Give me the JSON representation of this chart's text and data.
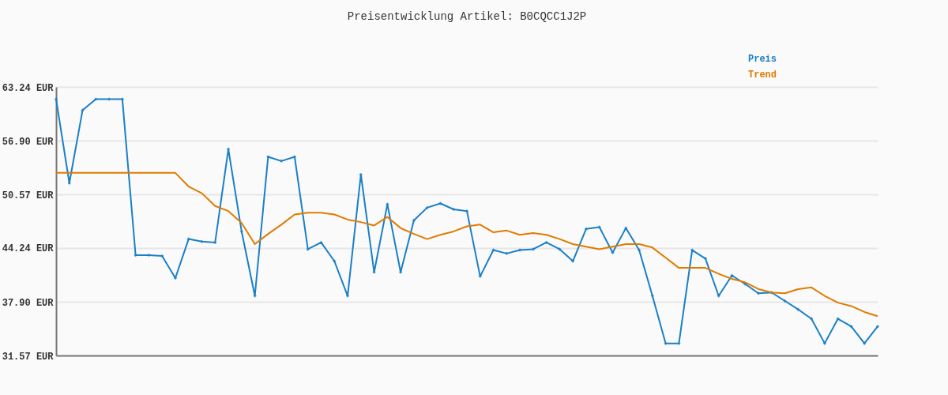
{
  "chart_data": {
    "type": "line",
    "title": "Preisentwicklung Artikel: B0CQCC1J2P",
    "categories": [
      null,
      null,
      null,
      null,
      null,
      null,
      null,
      null,
      null,
      null,
      null,
      null,
      null,
      null,
      null,
      null,
      null,
      null,
      null,
      null,
      null,
      null,
      null,
      null,
      null,
      null,
      null,
      null,
      null,
      null,
      null,
      null,
      null,
      null,
      null,
      null,
      null,
      null,
      null,
      null,
      null,
      null,
      null,
      null,
      null,
      null,
      null,
      null,
      null,
      null,
      null,
      null,
      null,
      null,
      null,
      null,
      null,
      null,
      null,
      null,
      null,
      null,
      null
    ],
    "series": [
      {
        "name": "Preis",
        "color": "#1a7fc8",
        "marker": "diamond",
        "values": [
          61.8,
          51.9,
          60.5,
          61.8,
          61.8,
          61.8,
          43.4,
          43.4,
          43.3,
          40.7,
          45.3,
          45.0,
          44.9,
          55.9,
          46.2,
          38.6,
          55.0,
          54.5,
          55.0,
          44.1,
          44.9,
          42.7,
          38.6,
          52.9,
          41.4,
          49.4,
          41.4,
          47.5,
          49.0,
          49.5,
          48.8,
          48.6,
          40.9,
          44.0,
          43.6,
          44.0,
          44.1,
          44.9,
          44.1,
          42.7,
          46.5,
          46.7,
          43.7,
          46.6,
          44.0,
          38.6,
          33.0,
          33.0,
          44.0,
          43.0,
          38.6,
          41.0,
          40.0,
          38.9,
          39.0,
          38.0,
          37.0,
          35.9,
          33.0,
          35.9,
          35.0,
          33.0,
          35.0
        ]
      },
      {
        "name": "Trend",
        "color": "#e07b00",
        "marker": "none",
        "values": [
          53.1,
          53.1,
          53.1,
          53.1,
          53.1,
          53.1,
          53.1,
          53.1,
          53.1,
          53.1,
          51.5,
          50.7,
          49.2,
          48.6,
          47.2,
          44.7,
          45.9,
          47.0,
          48.2,
          48.4,
          48.4,
          48.2,
          47.6,
          47.3,
          46.9,
          47.9,
          46.6,
          45.9,
          45.3,
          45.8,
          46.2,
          46.8,
          47.0,
          46.1,
          46.3,
          45.8,
          46.0,
          45.8,
          45.3,
          44.7,
          44.4,
          44.1,
          44.4,
          44.7,
          44.7,
          44.3,
          43.1,
          41.9,
          41.9,
          41.9,
          41.2,
          40.6,
          40.2,
          39.4,
          39.0,
          38.9,
          39.4,
          39.6,
          38.6,
          37.8,
          37.4,
          36.7,
          36.2
        ]
      }
    ],
    "ylim": [
      31.57,
      63.24
    ],
    "yticks": [
      {
        "value": 31.57,
        "label": "31.57 EUR"
      },
      {
        "value": 37.9,
        "label": "37.90 EUR"
      },
      {
        "value": 44.24,
        "label": "44.24 EUR"
      },
      {
        "value": 50.57,
        "label": "50.57 EUR"
      },
      {
        "value": 56.9,
        "label": "56.90 EUR"
      },
      {
        "value": 63.24,
        "label": "63.24 EUR"
      }
    ],
    "grid": "y",
    "legend": "top right"
  }
}
